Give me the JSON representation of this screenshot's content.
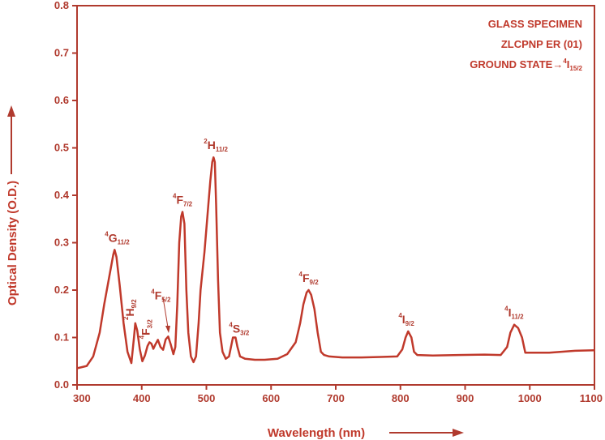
{
  "colors": {
    "accent": "#c0392b",
    "axis": "#b03a2e",
    "background": "#ffffff"
  },
  "chart_data": {
    "type": "line",
    "xlabel": "Wavelength (nm)",
    "ylabel": "Optical Density (O.D.)",
    "xlim": [
      300,
      1100
    ],
    "ylim": [
      0,
      0.8
    ],
    "x_ticks": [
      "300",
      "400",
      "500",
      "600",
      "700",
      "800",
      "900",
      "1000",
      "1100"
    ],
    "y_ticks": [
      "0.0",
      "0.1",
      "0.2",
      "0.3",
      "0.4",
      "0.5",
      "0.6",
      "0.7",
      "0.8"
    ],
    "grid": false,
    "annotations": [
      "GLASS SPECIMEN",
      "ZLCPNP  ER (01)",
      "GROUND STATE→",
      "4",
      "I",
      "15/2"
    ],
    "peak_labels": [
      {
        "sup": "4",
        "main": "G",
        "sub": "11/2",
        "x": 358,
        "y": 0.285
      },
      {
        "sup": "2",
        "main": "H",
        "sub": "9/2",
        "x": 390,
        "y": 0.13
      },
      {
        "sup": "4",
        "main": "F",
        "sub": "3/2",
        "x": 415,
        "y": 0.09
      },
      {
        "sup": "4",
        "main": "F",
        "sub": "5/2",
        "x": 437,
        "y": 0.102
      },
      {
        "sup": "4",
        "main": "F",
        "sub": "7/2",
        "x": 463,
        "y": 0.365
      },
      {
        "sup": "2",
        "main": "H",
        "sub": "11/2",
        "x": 511,
        "y": 0.48
      },
      {
        "sup": "4",
        "main": "S",
        "sub": "3/2",
        "x": 545,
        "y": 0.1
      },
      {
        "sup": "4",
        "main": "F",
        "sub": "9/2",
        "x": 658,
        "y": 0.2
      },
      {
        "sup": "4",
        "main": "I",
        "sub": "9/2",
        "x": 812,
        "y": 0.113
      },
      {
        "sup": "4",
        "main": "I",
        "sub": "11/2",
        "x": 976,
        "y": 0.127
      }
    ],
    "series": [
      {
        "x": [
          300,
          315,
          325,
          335,
          342,
          350,
          356,
          358,
          361,
          366,
          372,
          378,
          384,
          388,
          390,
          393,
          397,
          401,
          405,
          409,
          412,
          415,
          418,
          421,
          425,
          429,
          433,
          437,
          441,
          445,
          449,
          452,
          455,
          458,
          461,
          463,
          466,
          469,
          472,
          476,
          480,
          484,
          488,
          491,
          494,
          497,
          500,
          503,
          506,
          509,
          511,
          513,
          515,
          518,
          521,
          525,
          530,
          535,
          538,
          541,
          545,
          548,
          552,
          560,
          575,
          590,
          610,
          625,
          638,
          645,
          650,
          655,
          658,
          662,
          667,
          672,
          677,
          682,
          690,
          710,
          740,
          770,
          795,
          803,
          808,
          812,
          817,
          821,
          826,
          850,
          890,
          930,
          955,
          965,
          970,
          976,
          982,
          988,
          993,
          1030,
          1070,
          1100
        ],
        "y": [
          0.035,
          0.04,
          0.06,
          0.11,
          0.17,
          0.23,
          0.275,
          0.285,
          0.27,
          0.21,
          0.13,
          0.07,
          0.046,
          0.1,
          0.13,
          0.115,
          0.075,
          0.05,
          0.062,
          0.082,
          0.09,
          0.087,
          0.076,
          0.085,
          0.095,
          0.08,
          0.074,
          0.096,
          0.102,
          0.085,
          0.065,
          0.08,
          0.17,
          0.3,
          0.355,
          0.365,
          0.34,
          0.2,
          0.11,
          0.06,
          0.048,
          0.06,
          0.13,
          0.2,
          0.24,
          0.28,
          0.33,
          0.38,
          0.43,
          0.47,
          0.48,
          0.47,
          0.38,
          0.22,
          0.11,
          0.07,
          0.055,
          0.06,
          0.08,
          0.1,
          0.1,
          0.08,
          0.06,
          0.055,
          0.053,
          0.053,
          0.055,
          0.065,
          0.09,
          0.13,
          0.17,
          0.195,
          0.2,
          0.19,
          0.16,
          0.11,
          0.07,
          0.063,
          0.06,
          0.058,
          0.058,
          0.059,
          0.06,
          0.075,
          0.1,
          0.113,
          0.1,
          0.07,
          0.063,
          0.062,
          0.063,
          0.064,
          0.063,
          0.08,
          0.11,
          0.127,
          0.12,
          0.1,
          0.068,
          0.068,
          0.072,
          0.073
        ]
      }
    ]
  }
}
